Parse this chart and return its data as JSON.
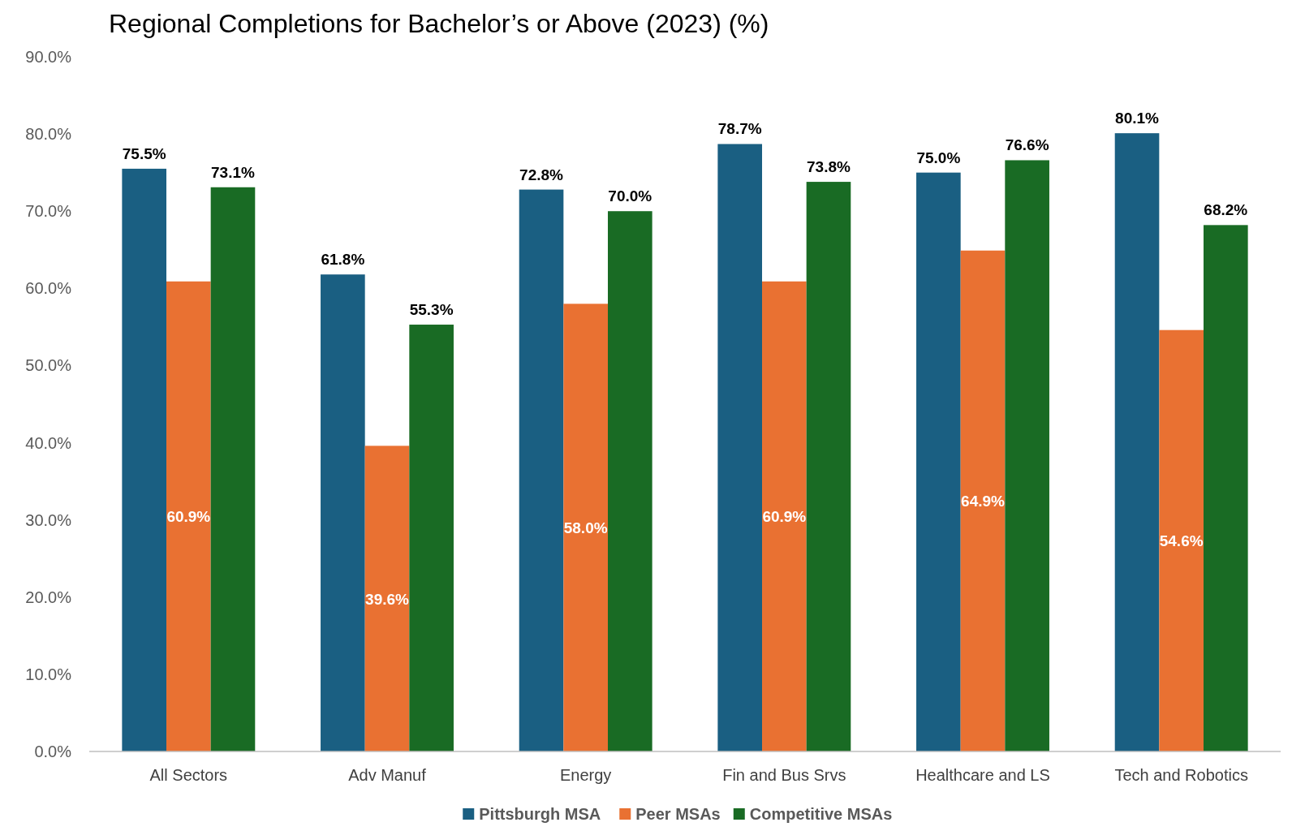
{
  "chart_data": {
    "type": "bar",
    "title": "Regional Completions for Bachelor’s or Above (2023) (%)",
    "categories": [
      "All Sectors",
      "Adv Manuf",
      "Energy",
      "Fin and Bus Srvs",
      "Healthcare and LS",
      "Tech and Robotics"
    ],
    "series": [
      {
        "name": "Pittsburgh MSA",
        "color": "#1a5f82",
        "values": [
          75.5,
          61.8,
          72.8,
          78.7,
          75.0,
          80.1
        ],
        "value_labels": [
          "75.5%",
          "61.8%",
          "72.8%",
          "78.7%",
          "75.0%",
          "80.1%"
        ]
      },
      {
        "name": "Peer MSAs",
        "color": "#e97132",
        "values": [
          60.9,
          39.6,
          58.0,
          60.9,
          64.9,
          54.6
        ],
        "value_labels": [
          "60.9%",
          "39.6%",
          "58.0%",
          "60.9%",
          "64.9%",
          "54.6%"
        ]
      },
      {
        "name": "Competitive MSAs",
        "color": "#196b24",
        "values": [
          73.1,
          55.3,
          70.0,
          73.8,
          76.6,
          68.2
        ],
        "value_labels": [
          "73.1%",
          "55.3%",
          "70.0%",
          "73.8%",
          "76.6%",
          "68.2%"
        ]
      }
    ],
    "ylim": [
      0,
      90
    ],
    "yticks": [
      {
        "value": 0,
        "label": "0.0%"
      },
      {
        "value": 10,
        "label": "10.0%"
      },
      {
        "value": 20,
        "label": "20.0%"
      },
      {
        "value": 30,
        "label": "30.0%"
      },
      {
        "value": 40,
        "label": "40.0%"
      },
      {
        "value": 50,
        "label": "50.0%"
      },
      {
        "value": 60,
        "label": "60.0%"
      },
      {
        "value": 70,
        "label": "70.0%"
      },
      {
        "value": 80,
        "label": "80.0%"
      },
      {
        "value": 90,
        "label": "90.0%"
      }
    ],
    "legend": "bottom"
  }
}
